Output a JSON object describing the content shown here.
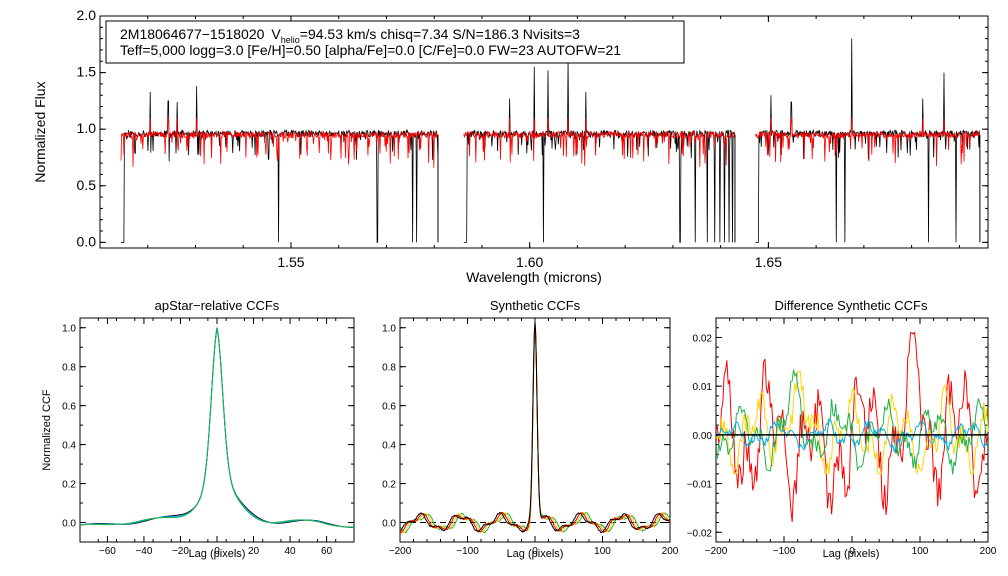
{
  "info_box": {
    "star_id": "2M18064677−1518020",
    "vhelio_prefix": "V",
    "vhelio_sub": "helio",
    "vhelio_rest": "=94.53 km/s  chisq=7.34  S/N=186.3  Nvisits=3",
    "line2": "Teff=5,000 logg=3.0 [Fe/H]=0.50 [alpha/Fe]=0.0 [C/Fe]=0.0 FW=23 AUTOFW=21"
  },
  "chart_data": [
    {
      "type": "line",
      "xlabel": "Wavelength (microns)",
      "ylabel": "Normalized Flux",
      "xlim": [
        1.51,
        1.696
      ],
      "ylim": [
        -0.05,
        2.0
      ],
      "xticks": [
        1.55,
        1.6,
        1.65
      ],
      "xtick_labels": [
        "1.55",
        "1.60",
        "1.65"
      ],
      "yticks": [
        0.0,
        0.5,
        1.0,
        1.5,
        2.0
      ],
      "ytick_labels": [
        "0.0",
        "0.5",
        "1.0",
        "1.5",
        "2.0"
      ],
      "chips": [
        [
          1.5144,
          1.5808
        ],
        [
          1.5862,
          1.643
        ],
        [
          1.6473,
          1.6943
        ]
      ],
      "spikes_up": [
        {
          "x": 1.5205,
          "y": 1.33
        },
        {
          "x": 1.5243,
          "y": 1.25
        },
        {
          "x": 1.5262,
          "y": 1.24
        },
        {
          "x": 1.5302,
          "y": 1.38
        },
        {
          "x": 1.5958,
          "y": 1.27
        },
        {
          "x": 1.601,
          "y": 1.55
        },
        {
          "x": 1.6038,
          "y": 1.52
        },
        {
          "x": 1.608,
          "y": 1.62
        },
        {
          "x": 1.6118,
          "y": 1.33
        },
        {
          "x": 1.6505,
          "y": 1.3
        },
        {
          "x": 1.6548,
          "y": 1.24
        },
        {
          "x": 1.6675,
          "y": 1.8
        },
        {
          "x": 1.6823,
          "y": 1.27
        },
        {
          "x": 1.6868,
          "y": 1.5
        }
      ],
      "spikes_down": [
        1.5474,
        1.5681,
        1.5755,
        1.5763,
        1.6029,
        1.6315,
        1.6347,
        1.6372,
        1.6388,
        1.6398,
        1.6408,
        1.6418,
        1.6425,
        1.6642,
        1.666,
        1.6835,
        1.6893
      ],
      "series": [
        {
          "color": "#000000",
          "continuum": 0.96
        },
        {
          "color": "#ff0000",
          "continuum": 0.95
        }
      ]
    },
    {
      "type": "line",
      "title": "apStar−relative CCFs",
      "xlabel": "Lag (pixels)",
      "ylabel": "Normalized CCF",
      "xlim": [
        -75,
        75
      ],
      "ylim": [
        -0.1,
        1.05
      ],
      "xticks": [
        -60,
        -40,
        -20,
        0,
        20,
        40,
        60
      ],
      "xtick_labels": [
        "−60",
        "−40",
        "−20",
        "0",
        "20",
        "40",
        "60"
      ],
      "yticks": [
        0.0,
        0.2,
        0.4,
        0.6,
        0.8,
        1.0
      ],
      "ytick_labels": [
        "0.0",
        "0.2",
        "0.4",
        "0.6",
        "0.8",
        "1.0"
      ],
      "series": [
        {
          "color": "#000000",
          "shape": "broad",
          "peak": 1.0,
          "baseline": 0.0
        },
        {
          "color": "#00aeef",
          "shape": "broad",
          "peak": 0.99,
          "baseline": 0.0
        },
        {
          "color": "#1db14a",
          "shape": "broad",
          "peak": 0.98,
          "baseline": 0.0
        }
      ]
    },
    {
      "type": "line",
      "title": "Synthetic CCFs",
      "xlabel": "Lag (pixels)",
      "xlim": [
        -200,
        200
      ],
      "ylim": [
        -0.1,
        1.05
      ],
      "xticks": [
        -200,
        -100,
        0,
        100,
        200
      ],
      "xtick_labels": [
        "−200",
        "−100",
        "0",
        "100",
        "200"
      ],
      "yticks": [
        0.0,
        0.2,
        0.4,
        0.6,
        0.8,
        1.0
      ],
      "ytick_labels": [
        "0.0",
        "0.2",
        "0.4",
        "0.6",
        "0.8",
        "1.0"
      ],
      "zero_line": true,
      "series": [
        {
          "color": "#1db14a",
          "shape": "narrow",
          "peak": 0.99
        },
        {
          "color": "#ffd400",
          "shape": "narrow",
          "peak": 0.99
        },
        {
          "color": "#ff0000",
          "shape": "narrow",
          "peak": 1.0
        },
        {
          "color": "#000000",
          "shape": "narrow",
          "peak": 1.0
        }
      ]
    },
    {
      "type": "line",
      "title": "Difference Synthetic CCFs",
      "xlabel": "Lag (pixels)",
      "xlim": [
        -200,
        200
      ],
      "ylim": [
        -0.022,
        0.024
      ],
      "xticks": [
        -200,
        -100,
        0,
        100,
        200
      ],
      "xtick_labels": [
        "−200",
        "−100",
        "0",
        "100",
        "200"
      ],
      "yticks": [
        -0.02,
        -0.01,
        0.0,
        0.01,
        0.02
      ],
      "ytick_labels": [
        "−0.02",
        "−0.01",
        "0.00",
        "0.01",
        "0.02"
      ],
      "zero_line": true,
      "series": [
        {
          "color": "#ff0000",
          "amp": 0.01,
          "max_y": 0.021,
          "min_y": -0.019
        },
        {
          "color": "#ffd400",
          "amp": 0.006,
          "max_y": 0.013,
          "min_y": -0.008
        },
        {
          "color": "#1db14a",
          "amp": 0.005,
          "max_y": 0.015,
          "min_y": -0.011
        },
        {
          "color": "#00aeef",
          "amp": 0.002,
          "max_y": 0.004,
          "min_y": -0.007
        }
      ]
    }
  ]
}
